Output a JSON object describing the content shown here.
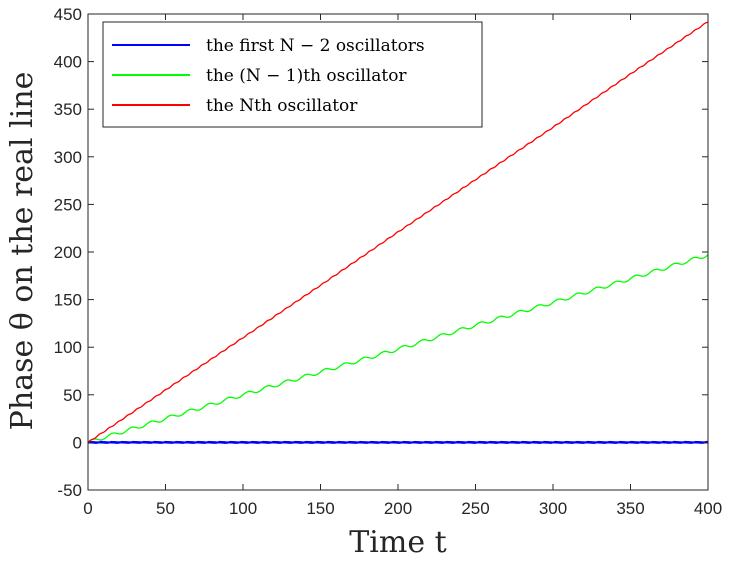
{
  "chart_data": {
    "type": "line",
    "title": "",
    "xlabel": "Time t",
    "ylabel": "Phase θ on the real line",
    "xlim": [
      0,
      400
    ],
    "ylim": [
      -50,
      450
    ],
    "xticks": [
      0,
      50,
      100,
      150,
      200,
      250,
      300,
      350,
      400
    ],
    "yticks": [
      -50,
      0,
      50,
      100,
      150,
      200,
      250,
      300,
      350,
      400,
      450
    ],
    "xtick_labels": [
      "0",
      "50",
      "100",
      "150",
      "200",
      "250",
      "300",
      "350",
      "400"
    ],
    "ytick_labels": [
      "-50",
      "0",
      "50",
      "100",
      "150",
      "200",
      "250",
      "300",
      "350",
      "400",
      "450"
    ],
    "grid": false,
    "legend_position": "top-left",
    "series": [
      {
        "name": "the first N − 2 oscillators",
        "color": "#0000ff",
        "style": "flat band of many overlapping curves near 0",
        "x": [
          0,
          50,
          100,
          150,
          200,
          250,
          300,
          350,
          400
        ],
        "y": [
          0,
          0,
          0,
          0,
          0,
          0,
          0,
          0,
          0
        ]
      },
      {
        "name": "the (N − 1)th oscillator",
        "color": "#00ff00",
        "style": "staircase-like increasing curve",
        "x": [
          0,
          50,
          100,
          150,
          200,
          250,
          300,
          350,
          400
        ],
        "y": [
          0,
          25,
          50,
          74,
          98,
          123,
          147,
          172,
          197
        ]
      },
      {
        "name": "the Nth oscillator",
        "color": "#ff0000",
        "style": "nearly linear increase",
        "x": [
          0,
          50,
          100,
          150,
          200,
          250,
          300,
          350,
          400
        ],
        "y": [
          0,
          55,
          110,
          165,
          221,
          276,
          331,
          387,
          442
        ]
      }
    ]
  }
}
